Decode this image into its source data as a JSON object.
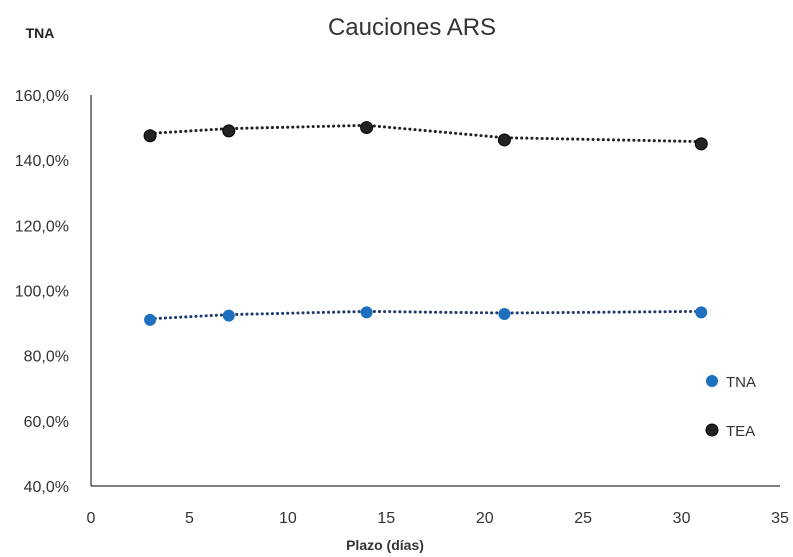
{
  "chart_data": {
    "type": "scatter",
    "title": "Cauciones ARS",
    "ylabel": "TNA",
    "xlabel": "Plazo (días)",
    "xlim": [
      0,
      35
    ],
    "ylim": [
      40,
      160
    ],
    "x_ticks": [
      "0",
      "5",
      "10",
      "15",
      "20",
      "25",
      "30",
      "35"
    ],
    "y_ticks": [
      "40,0%",
      "60,0%",
      "80,0%",
      "100,0%",
      "120,0%",
      "140,0%",
      "160,0%"
    ],
    "grid": false,
    "legend_position": "right",
    "trendlines": "dotted",
    "series": [
      {
        "name": "TNA",
        "color": "#1f6fbf",
        "trend_color": "#1f3a6e",
        "x": [
          3,
          7,
          14,
          21,
          31
        ],
        "y": [
          91.0,
          92.3,
          93.3,
          92.8,
          93.3
        ]
      },
      {
        "name": "TEA",
        "color": "#222222",
        "trend_color": "#222222",
        "x": [
          3,
          7,
          14,
          21,
          31
        ],
        "y": [
          147.5,
          149.0,
          150.0,
          146.2,
          145.0
        ]
      }
    ]
  }
}
